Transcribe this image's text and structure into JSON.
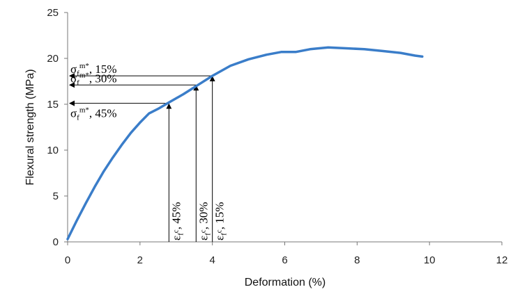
{
  "chart_data": {
    "type": "line",
    "xlabel": "Deformation (%)",
    "ylabel": "Flexural strength (MPa)",
    "xlim": [
      0,
      12
    ],
    "ylim": [
      0,
      25
    ],
    "xticks": [
      0,
      2,
      4,
      6,
      8,
      10,
      12
    ],
    "yticks": [
      0,
      5,
      10,
      15,
      20,
      25
    ],
    "grid": false,
    "legend": "none",
    "series": [
      {
        "color": "#3a7dc9",
        "x": [
          0,
          0.25,
          0.5,
          0.75,
          1.0,
          1.25,
          1.5,
          1.75,
          2.0,
          2.25,
          2.5,
          2.8,
          3.2,
          3.6,
          4.0,
          4.5,
          5.0,
          5.5,
          5.9,
          6.3,
          6.7,
          7.2,
          7.7,
          8.2,
          8.7,
          9.2,
          9.6,
          9.8
        ],
        "y": [
          0.3,
          2.3,
          4.2,
          6.0,
          7.7,
          9.2,
          10.6,
          11.9,
          13.0,
          14.0,
          14.5,
          15.2,
          16.1,
          17.1,
          18.1,
          19.2,
          19.9,
          20.4,
          20.7,
          20.7,
          21.0,
          21.2,
          21.1,
          21.0,
          20.8,
          20.6,
          20.3,
          20.2
        ]
      }
    ],
    "annotations": [
      {
        "id": "15",
        "x": 4.0,
        "y": 18.1,
        "h_base": "σ",
        "h_sub": "f",
        "h_sup": "m*",
        "h_rest": ", 15%",
        "v_base": "ε",
        "v_sub": "f",
        "v_sup": "c",
        "v_rest": ", 15%"
      },
      {
        "id": "30",
        "x": 3.55,
        "y": 17.1,
        "h_base": "σ",
        "h_sub": "f",
        "h_sup": "m*",
        "h_rest": ", 30%",
        "v_base": "ε",
        "v_sub": "f",
        "v_sup": "c",
        "v_rest": ", 30%"
      },
      {
        "id": "45",
        "x": 2.8,
        "y": 15.1,
        "h_base": "σ",
        "h_sub": "f",
        "h_sup": "m*",
        "h_rest": ", 45%",
        "v_base": "ε",
        "v_sub": "f",
        "v_sup": "c",
        "v_rest": ", 45%"
      }
    ]
  }
}
